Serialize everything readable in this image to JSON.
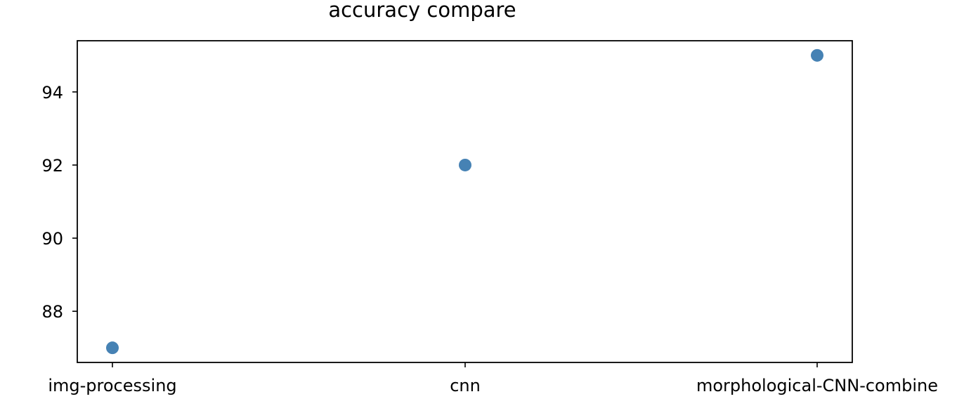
{
  "chart_data": {
    "type": "scatter",
    "title": "accuracy compare",
    "xlabel": "",
    "ylabel": "",
    "categories": [
      "img-processing",
      "cnn",
      "morphological-CNN-combine"
    ],
    "series": [
      {
        "values": [
          87,
          92,
          95
        ]
      }
    ],
    "y_ticks": [
      88,
      90,
      92,
      94
    ],
    "y_tick_labels": [
      "88",
      "90",
      "92",
      "94"
    ],
    "ylim": [
      86.6,
      95.4
    ],
    "grid": false,
    "point_color": "#4682b4"
  }
}
